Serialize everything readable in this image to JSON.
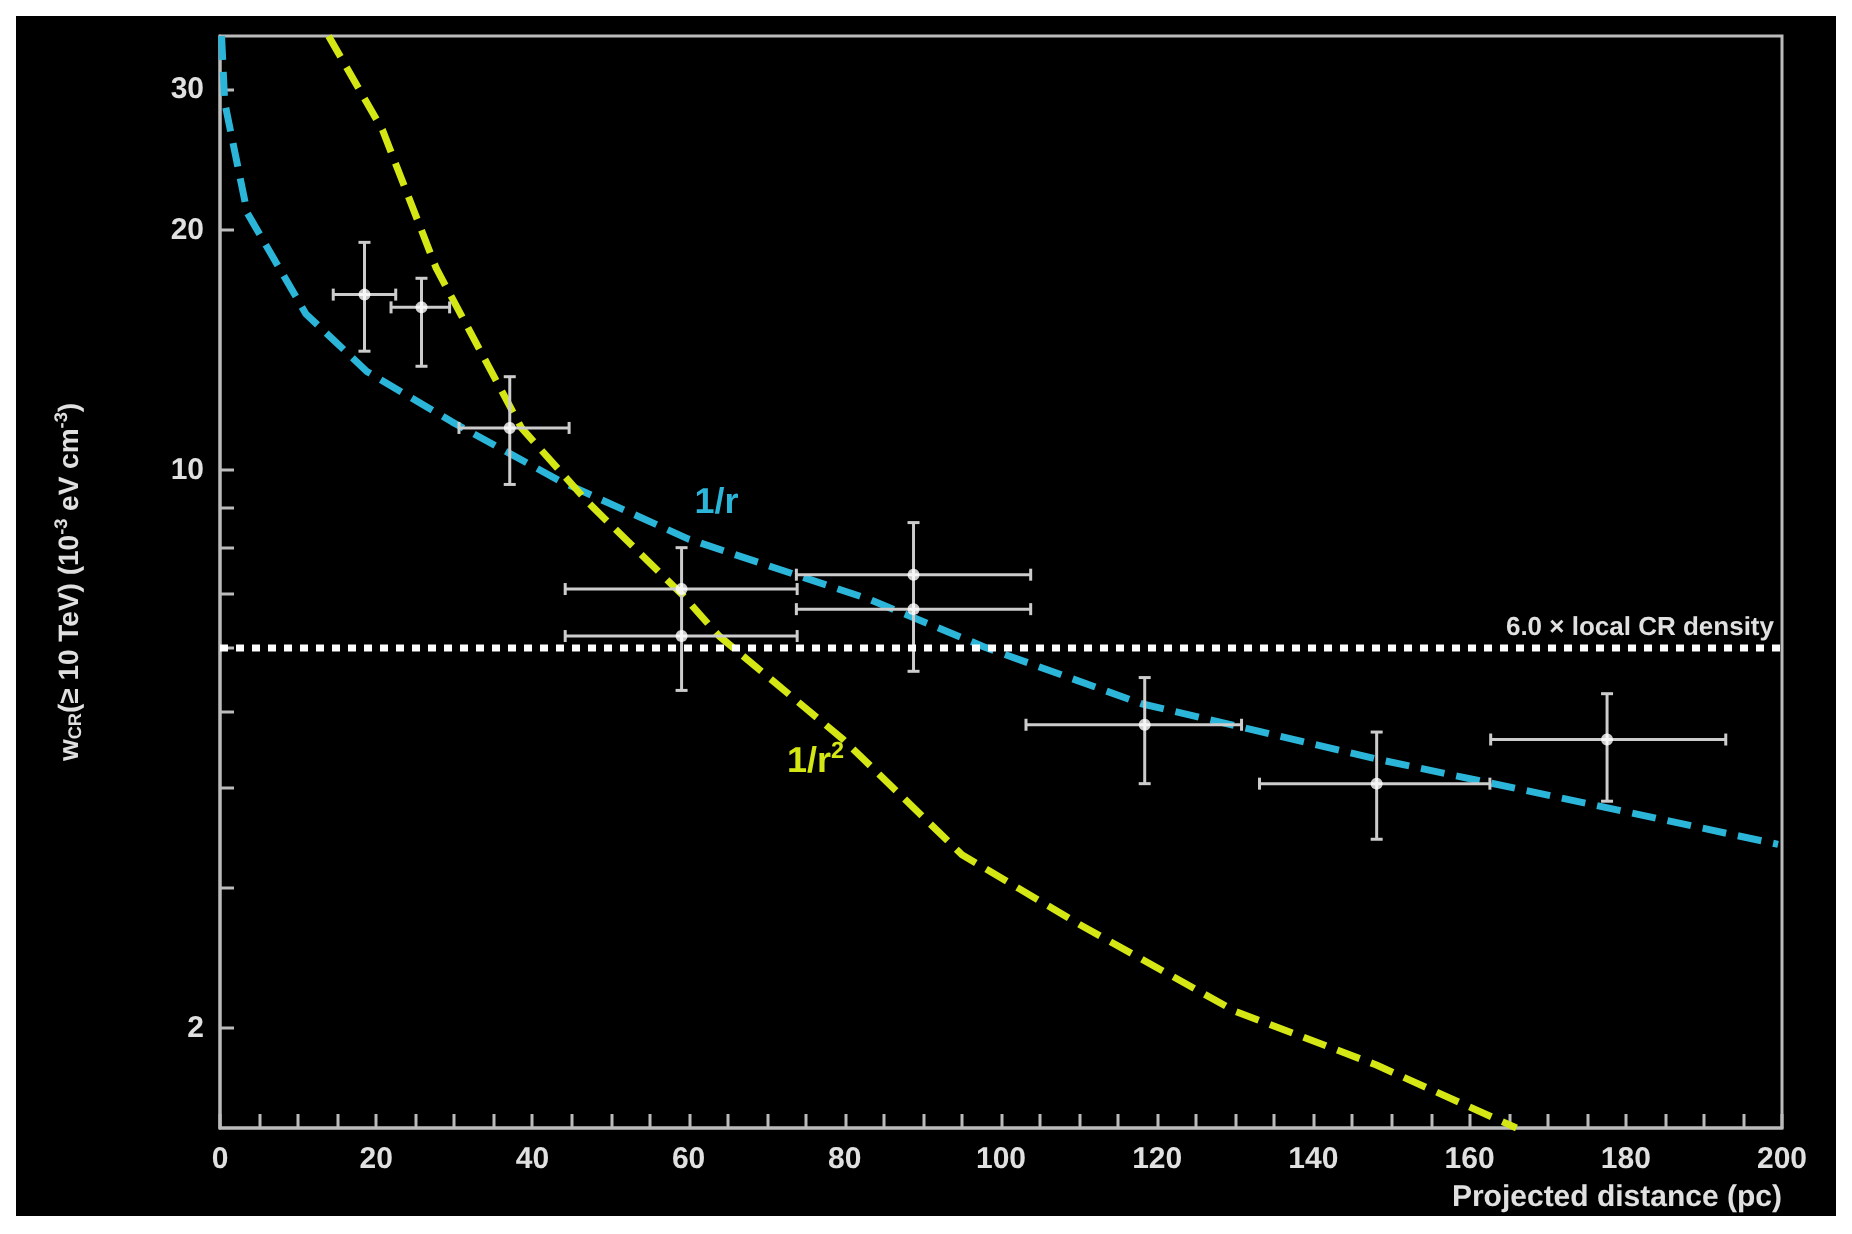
{
  "chart_data": {
    "type": "scatter",
    "xlabel": "Projected distance (pc)",
    "ylabel": "w$_{CR}$(≥ 10 TeV) (10$^{-3}$ eV cm$^{-3}$)",
    "log": "y",
    "xlim": [
      0,
      200
    ],
    "ylim": [
      1.5,
      35
    ],
    "xticks": [
      0,
      {
        "value": 5,
        "label": null
      },
      {
        "value": 10,
        "label": null
      },
      {
        "value": 15,
        "label": null
      },
      20,
      {
        "value": 25,
        "label": null
      },
      {
        "value": 30,
        "label": null
      },
      {
        "value": 35,
        "label": null
      },
      40,
      {
        "value": 45,
        "label": null
      },
      {
        "value": 50,
        "label": null
      },
      {
        "value": 55,
        "label": null
      },
      60,
      {
        "value": 65,
        "label": null
      },
      {
        "value": 70,
        "label": null
      },
      {
        "value": 75,
        "label": null
      },
      80,
      {
        "value": 85,
        "label": null
      },
      {
        "value": 90,
        "label": null
      },
      {
        "value": 95,
        "label": null
      },
      100,
      {
        "value": 105,
        "label": null
      },
      {
        "value": 110,
        "label": null
      },
      {
        "value": 115,
        "label": null
      },
      120,
      {
        "value": 125,
        "label": null
      },
      {
        "value": 130,
        "label": null
      },
      {
        "value": 135,
        "label": null
      },
      140,
      {
        "value": 145,
        "label": null
      },
      {
        "value": 150,
        "label": null
      },
      {
        "value": 155,
        "label": null
      },
      160,
      {
        "value": 165,
        "label": null
      },
      {
        "value": 170,
        "label": null
      },
      {
        "value": 175,
        "label": null
      },
      180,
      {
        "value": 185,
        "label": null
      },
      {
        "value": 190,
        "label": null
      },
      {
        "value": 195,
        "label": null
      },
      200
    ],
    "yticks": [
      2,
      {
        "value": 3,
        "label": null
      },
      {
        "value": 4,
        "label": null
      },
      {
        "value": 5,
        "label": null
      },
      {
        "value": 6,
        "label": null
      },
      {
        "value": 7,
        "label": null
      },
      {
        "value": 8,
        "label": null
      },
      {
        "value": 9,
        "label": null
      },
      10,
      20,
      30
    ],
    "grid": false,
    "legend": false,
    "series": [
      {
        "type": "line",
        "name": "1/r",
        "color": "#2bb5d8",
        "line_style": "dashed",
        "marker": "none",
        "x": [
          0.2,
          0.6,
          3.5,
          11,
          18.8,
          29.7,
          43.5,
          60,
          83,
          98,
          118,
          148,
          171,
          199.5
        ],
        "values": [
          35,
          28.9,
          21,
          15.7,
          13.3,
          11.5,
          9.7,
          8.2,
          6.9,
          6.0,
          5.1,
          4.35,
          3.9,
          3.4
        ]
      },
      {
        "type": "line",
        "name": "1/r$^{2}$",
        "color": "#d4e614",
        "line_style": "dashed",
        "marker": "none",
        "x": [
          13.9,
          20.8,
          27.7,
          38.6,
          47.2,
          59.1,
          63.9,
          79.8,
          95,
          110,
          130,
          148,
          166
        ],
        "values": [
          35,
          26.7,
          17.9,
          11.3,
          9.1,
          7.0,
          6.2,
          4.6,
          3.3,
          2.7,
          2.1,
          1.8,
          1.5
        ]
      },
      {
        "color": "#ffffff",
        "marker": "circle",
        "x": [
          18.5,
          25.8,
          37.1,
          59.1,
          59.1,
          88.8,
          88.8,
          118.4,
          148.1,
          177.6
        ],
        "values": [
          16.6,
          16.0,
          11.3,
          7.1,
          6.2,
          7.4,
          6.7,
          4.8,
          4.05,
          4.6
        ],
        "errors": [
          [
            14.1,
            19.3
          ],
          [
            13.5,
            17.4
          ],
          [
            9.6,
            13.1
          ],
          [
            5.3,
            8.0
          ],
          null,
          [
            5.6,
            8.6
          ],
          null,
          [
            4.05,
            5.5
          ],
          [
            3.45,
            4.7
          ],
          [
            3.85,
            5.25
          ]
        ],
        "xerrors": [
          [
            14.5,
            22.5
          ],
          [
            21.9,
            29.4
          ],
          [
            30.6,
            44.7
          ],
          [
            44.2,
            73.9
          ],
          [
            44.2,
            73.9
          ],
          [
            73.8,
            103.8
          ],
          [
            73.8,
            103.8
          ],
          [
            103.2,
            130.8
          ],
          [
            133.1,
            162.6
          ],
          [
            162.7,
            192.8
          ]
        ]
      }
    ],
    "ref_lines": [
      {
        "axis": "y",
        "value": 6.0,
        "label": "6.0 × local CR density",
        "color": "#ffffff",
        "line_style": "dotted"
      }
    ]
  }
}
